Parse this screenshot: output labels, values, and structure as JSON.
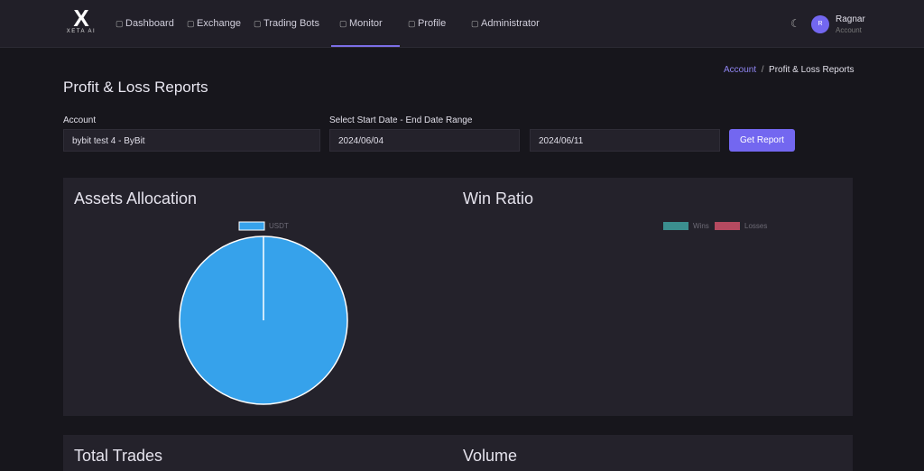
{
  "nav": {
    "brand": "XETA AI",
    "items": [
      "Dashboard",
      "Exchange",
      "Trading Bots",
      "Monitor",
      "Profile",
      "Administrator"
    ],
    "user": {
      "initial": "R",
      "name": "Ragnar",
      "role": "Account"
    }
  },
  "breadcrumb": [
    "Account",
    "Profit & Loss Reports"
  ],
  "page_title": "Profit & Loss Reports",
  "form": {
    "account_label": "Account",
    "account_value": "bybit test 4 - ByBit",
    "date_label": "Select Start Date - End Date Range",
    "start_date": "2024/06/04",
    "end_date": "2024/06/11",
    "button": "Get Report"
  },
  "chart_data": [
    {
      "type": "pie",
      "title": "Assets Allocation",
      "categories": [
        "USDT"
      ],
      "values": [
        100
      ],
      "colors": [
        "#36a2eb"
      ]
    },
    {
      "type": "pie",
      "title": "Win Ratio",
      "categories": [
        "Wins",
        "Losses"
      ],
      "colors": [
        "#3b8f8f",
        "#b54a60"
      ]
    }
  ],
  "sections": [
    "Total Trades",
    "Volume"
  ]
}
